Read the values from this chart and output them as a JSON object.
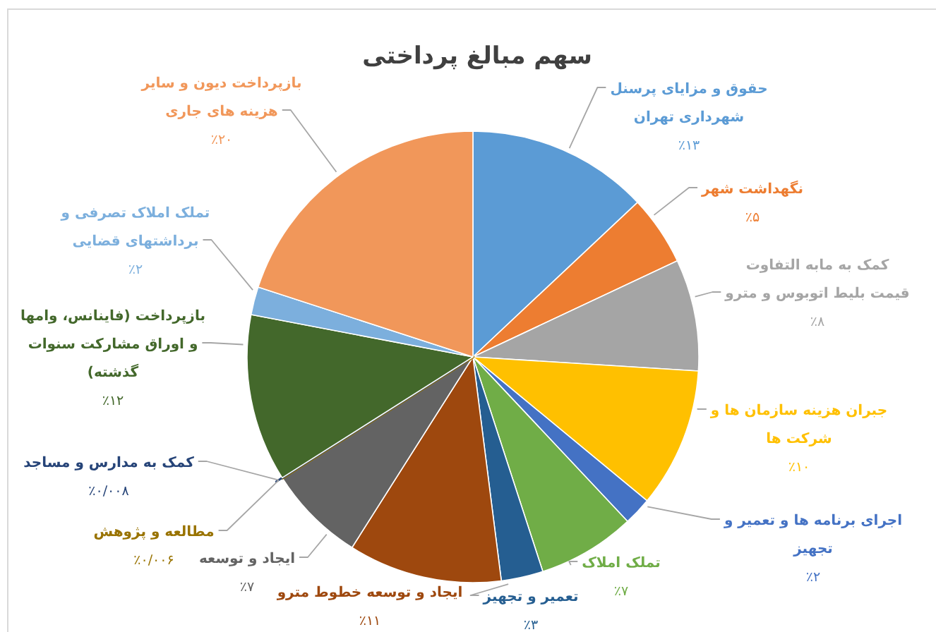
{
  "chart_data": {
    "type": "pie",
    "title": "سهم مبالغ پرداختی",
    "categories": [
      "حقوق و مزایای پرسنل شهرداری تهران",
      "نگهداشت شهر",
      "کمک به مابه التفاوت قیمت بلیط اتوبوس و مترو",
      "جبران هزینه سازمان ها و شرکت ها",
      "اجرای برنامه ها و تعمیر و تجهیز",
      "تملک املاک",
      "تعمیر و تجهیز",
      "ایجاد و توسعه خطوط مترو",
      "ایجاد و توسعه",
      "مطالعه و پژوهش",
      "کمک به مدارس و مساجد",
      "بازپرداخت (فاینانس، وامها و اوراق مشارکت سنوات گذشته)",
      "تملک املاک تصرفی و برداشتهای قضایی",
      "بازپرداخت دیون و سایر هزینه های جاری"
    ],
    "values": [
      13,
      5,
      8,
      10,
      2,
      7,
      3,
      11,
      7,
      0.006,
      0.008,
      12,
      2,
      20
    ],
    "colors": [
      "#5b9bd5",
      "#ed7d31",
      "#a5a5a5",
      "#ffc000",
      "#4472c4",
      "#70ad47",
      "#255e91",
      "#9e480e",
      "#636363",
      "#997300",
      "#264478",
      "#43682b",
      "#7cafdd",
      "#f1975a"
    ],
    "value_labels": [
      "٪۱۳",
      "٪۵",
      "٪۸",
      "٪۱۰",
      "٪۲",
      "٪۷",
      "٪۳",
      "٪۱۱",
      "٪۷",
      "٪۰/۰۰۶",
      "٪۰/۰۰۸",
      "٪۱۲",
      "٪۲",
      "٪۲۰"
    ]
  }
}
